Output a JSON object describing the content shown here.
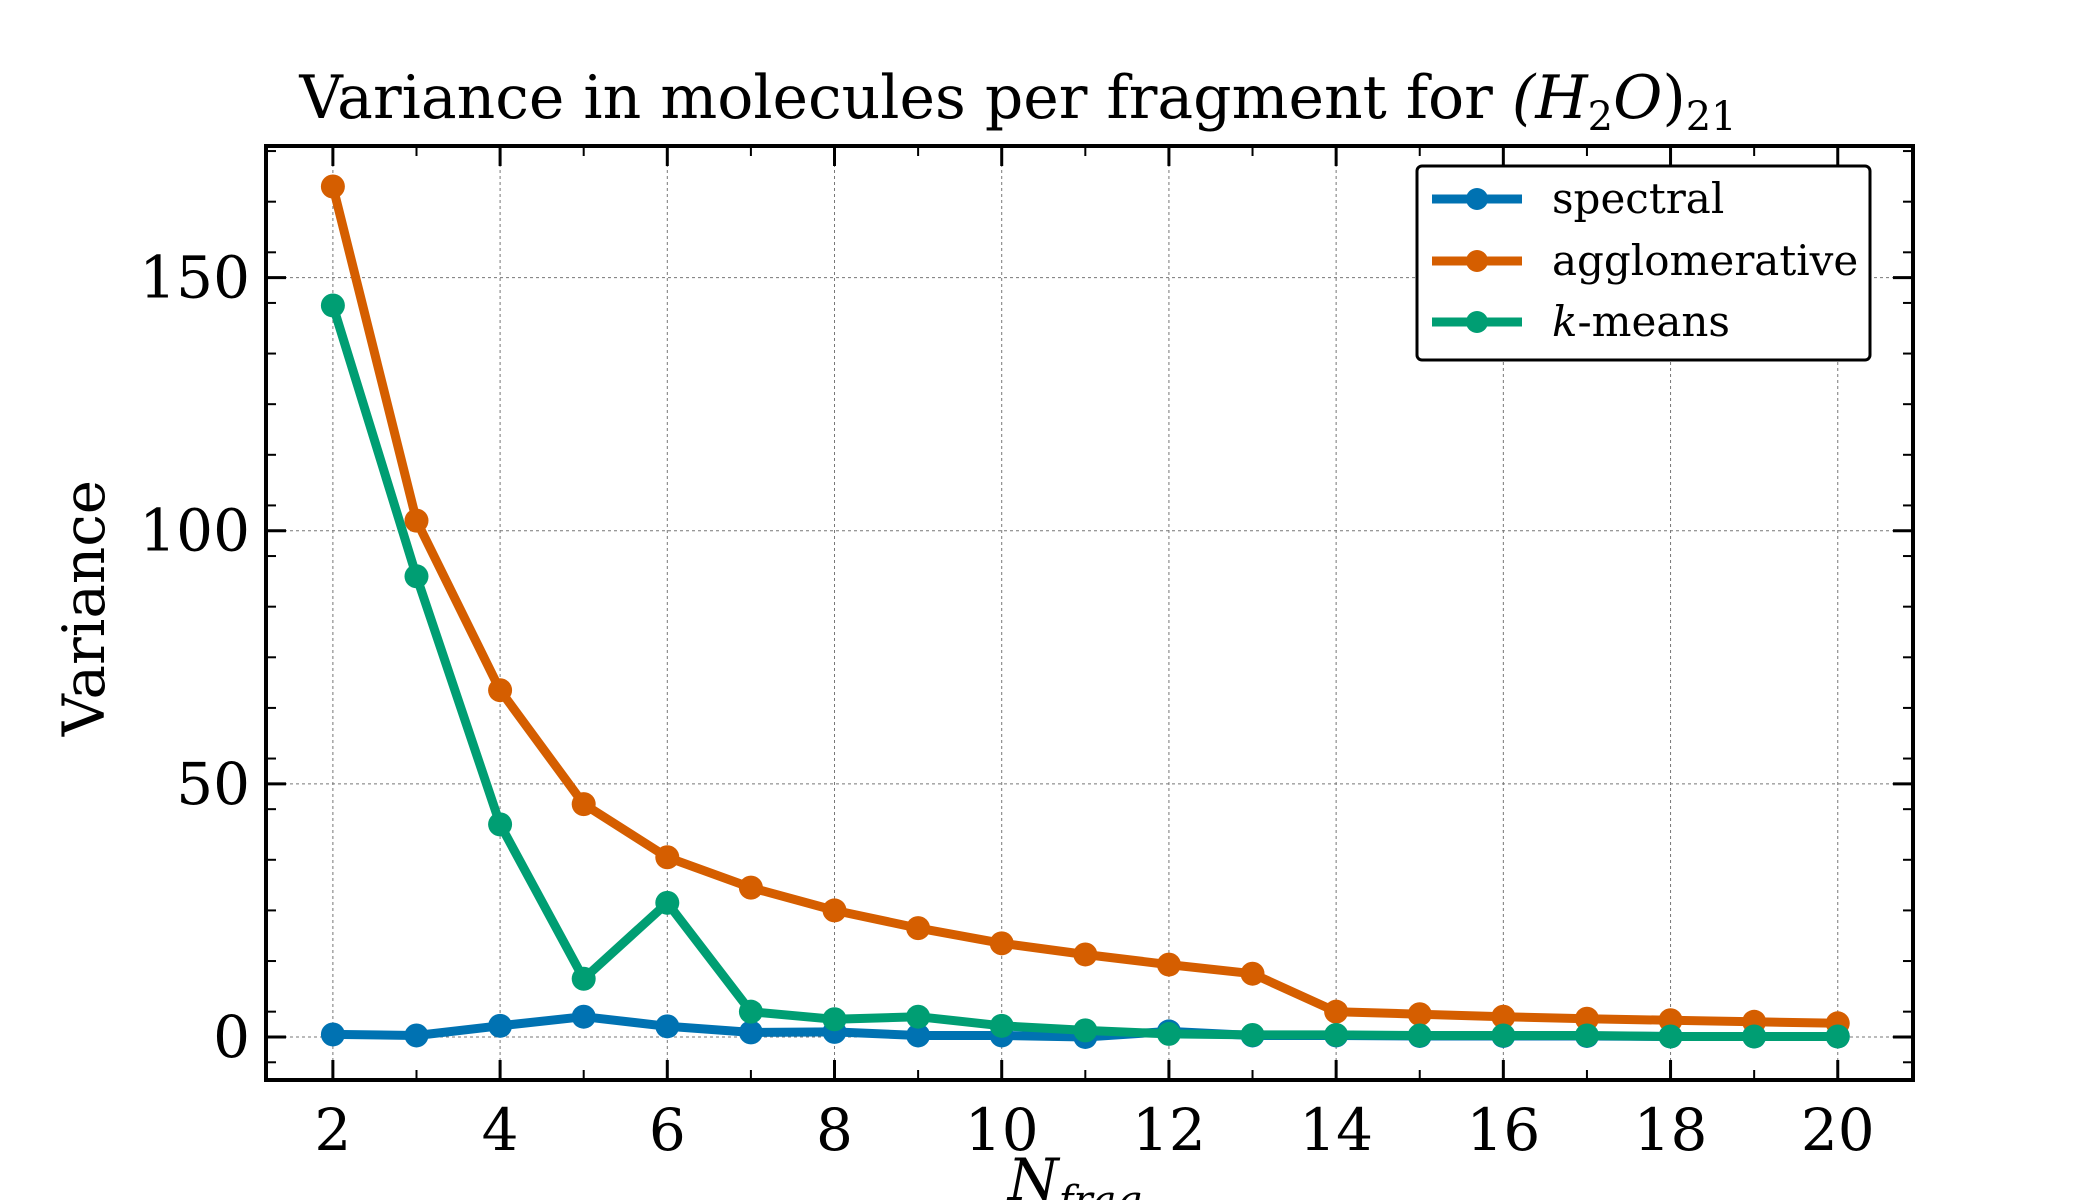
{
  "chart_data": {
    "type": "line",
    "title": "Variance in molecules per fragment for (H₂O)₂₁",
    "title_parts": {
      "text": "Variance in molecules per fragment for ",
      "open": "(",
      "H": "H",
      "sub2": "2",
      "O": "O",
      "close": ")",
      "sub21": "21"
    },
    "xlabel": "N_frag",
    "xlabel_parts": {
      "main": "N",
      "sub": "frag"
    },
    "ylabel": "Variance",
    "xlim": [
      1.2,
      20.9
    ],
    "ylim": [
      -8.5,
      176
    ],
    "x_ticks": [
      2,
      4,
      6,
      8,
      10,
      12,
      14,
      16,
      18,
      20
    ],
    "y_ticks": [
      0,
      50,
      100,
      150
    ],
    "grid": true,
    "legend_position": "top-right",
    "x": [
      2,
      3,
      4,
      5,
      6,
      7,
      8,
      9,
      10,
      11,
      12,
      13,
      14,
      15,
      16,
      17,
      18,
      19,
      20
    ],
    "series": [
      {
        "name": "spectral",
        "color": "#0072b2",
        "values": [
          0.5,
          0.3,
          2.2,
          4.0,
          2.1,
          0.9,
          1.0,
          0.3,
          0.3,
          0.0,
          1.1,
          0.3,
          0.3,
          0.2,
          0.2,
          0.2,
          0.1,
          0.1,
          0.1
        ]
      },
      {
        "name": "agglomerative",
        "color": "#d55e00",
        "values": [
          168,
          102,
          68.5,
          46,
          35.5,
          29.5,
          25,
          21.5,
          18.5,
          16.3,
          14.3,
          12.5,
          5.0,
          4.5,
          4.0,
          3.6,
          3.3,
          3.0,
          2.7
        ]
      },
      {
        "name_prefix": "k",
        "name": "-means",
        "color": "#009e73",
        "values": [
          144.5,
          91,
          42,
          11.5,
          26.5,
          5.0,
          3.5,
          4.0,
          2.2,
          1.3,
          0.6,
          0.4,
          0.4,
          0.3,
          0.3,
          0.3,
          0.1,
          0.1,
          0.1
        ]
      }
    ]
  }
}
